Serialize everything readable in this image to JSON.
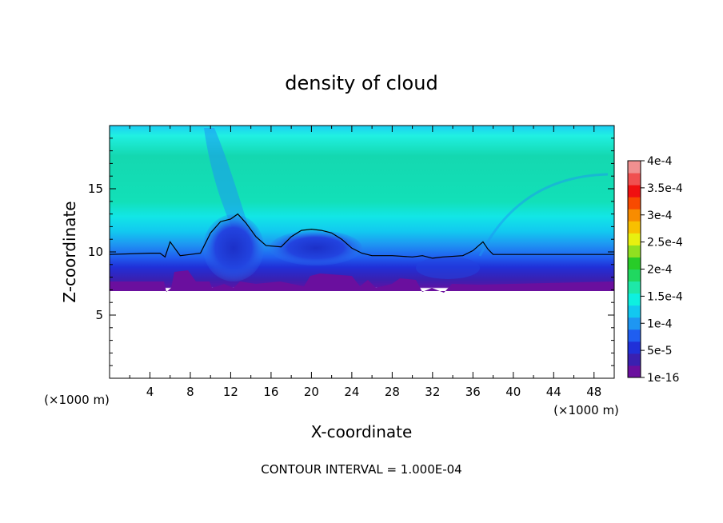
{
  "chart_data": {
    "type": "heatmap",
    "title": "density of cloud",
    "xlabel": "X-coordinate",
    "ylabel": "Z-coordinate",
    "x_unit": "(×1000 m)",
    "y_unit": "(×1000 m)",
    "xlim": [
      0,
      50
    ],
    "ylim": [
      0,
      20
    ],
    "x_ticks": [
      4,
      8,
      12,
      16,
      20,
      24,
      28,
      32,
      36,
      40,
      44,
      48
    ],
    "y_ticks": [
      5,
      10,
      15
    ],
    "footer": "CONTOUR INTERVAL = 1.000E-04",
    "colorbar": {
      "labels": [
        "1e-16",
        "5e-5",
        "1e-4",
        "1.5e-4",
        "2e-4",
        "2.5e-4",
        "3e-4",
        "3.5e-4",
        "4e-4"
      ],
      "colors": [
        "#6a0f9e",
        "#3a20b0",
        "#2030d8",
        "#1f5ef0",
        "#1e96f2",
        "#12c8f0",
        "#0ef0e0",
        "#1ee8a8",
        "#20d860",
        "#28cc28",
        "#90e020",
        "#e8f010",
        "#f8c000",
        "#f88c00",
        "#f84a00",
        "#f01010",
        "#f05050",
        "#f09090"
      ]
    },
    "field": {
      "cloud_base_z": [
        [
          0,
          7.2
        ],
        [
          50,
          7.2
        ]
      ],
      "cloud_top_contour": [
        [
          0,
          9.8
        ],
        [
          4,
          9.9
        ],
        [
          5,
          9.9
        ],
        [
          5.5,
          9.6
        ],
        [
          6,
          10.8
        ],
        [
          7,
          9.7
        ],
        [
          8,
          9.8
        ],
        [
          9,
          9.9
        ],
        [
          10,
          11.5
        ],
        [
          11,
          12.4
        ],
        [
          12,
          12.6
        ],
        [
          12.7,
          13.0
        ],
        [
          13.5,
          12.3
        ],
        [
          14.5,
          11.2
        ],
        [
          15.5,
          10.5
        ],
        [
          17,
          10.4
        ],
        [
          18,
          11.2
        ],
        [
          19,
          11.7
        ],
        [
          20,
          11.8
        ],
        [
          21,
          11.7
        ],
        [
          22,
          11.5
        ],
        [
          23,
          11.0
        ],
        [
          24,
          10.3
        ],
        [
          25,
          9.9
        ],
        [
          26,
          9.7
        ],
        [
          28,
          9.7
        ],
        [
          30,
          9.6
        ],
        [
          31,
          9.7
        ],
        [
          32,
          9.5
        ],
        [
          33,
          9.6
        ],
        [
          35,
          9.7
        ],
        [
          36,
          10.1
        ],
        [
          37,
          10.8
        ],
        [
          37.5,
          10.2
        ],
        [
          38,
          9.8
        ],
        [
          44,
          9.8
        ],
        [
          50,
          9.8
        ]
      ]
    }
  }
}
